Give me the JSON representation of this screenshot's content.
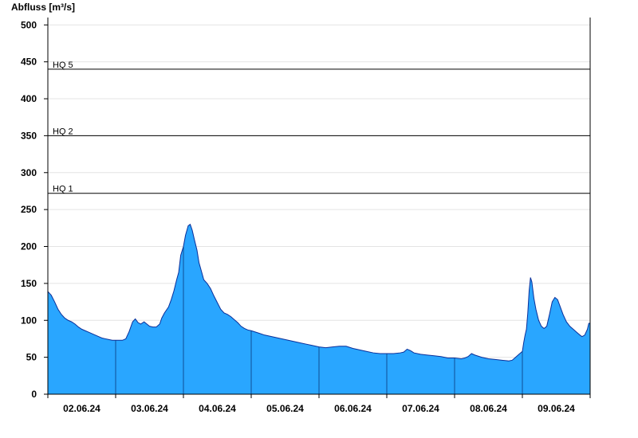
{
  "chart_data": {
    "type": "area",
    "title": "",
    "ylabel": "Abfluss [m³/s]",
    "xlabel": "",
    "ylim": [
      0,
      510
    ],
    "yticks": [
      0,
      50,
      100,
      150,
      200,
      250,
      300,
      350,
      400,
      450,
      500
    ],
    "grid": true,
    "x_range_days": [
      0,
      8
    ],
    "day_boundaries": [
      1,
      2,
      3,
      4,
      5,
      6,
      7
    ],
    "xtick_labels": [
      {
        "day_pos": 0.5,
        "label": "02.06.24"
      },
      {
        "day_pos": 1.5,
        "label": "03.06.24"
      },
      {
        "day_pos": 2.5,
        "label": "04.06.24"
      },
      {
        "day_pos": 3.5,
        "label": "05.06.24"
      },
      {
        "day_pos": 4.5,
        "label": "06.06.24"
      },
      {
        "day_pos": 5.5,
        "label": "07.06.24"
      },
      {
        "day_pos": 6.5,
        "label": "08.06.24"
      },
      {
        "day_pos": 7.5,
        "label": "09.06.24"
      }
    ],
    "reference_lines": [
      {
        "label": "HQ 1",
        "value": 272
      },
      {
        "label": "HQ 2",
        "value": 350
      },
      {
        "label": "HQ 5",
        "value": 440
      }
    ],
    "series": [
      {
        "fill_color": "#29a6ff",
        "line_color": "#0a2f99",
        "points": [
          [
            0.0,
            139
          ],
          [
            0.05,
            134
          ],
          [
            0.1,
            125
          ],
          [
            0.15,
            115
          ],
          [
            0.2,
            108
          ],
          [
            0.25,
            103
          ],
          [
            0.3,
            100
          ],
          [
            0.35,
            98
          ],
          [
            0.4,
            95
          ],
          [
            0.45,
            91
          ],
          [
            0.5,
            88
          ],
          [
            0.55,
            86
          ],
          [
            0.6,
            84
          ],
          [
            0.65,
            82
          ],
          [
            0.7,
            80
          ],
          [
            0.75,
            78
          ],
          [
            0.8,
            76
          ],
          [
            0.85,
            75
          ],
          [
            0.9,
            74
          ],
          [
            0.95,
            73
          ],
          [
            1.0,
            73
          ],
          [
            1.05,
            73
          ],
          [
            1.1,
            73
          ],
          [
            1.15,
            75
          ],
          [
            1.2,
            85
          ],
          [
            1.25,
            98
          ],
          [
            1.29,
            102
          ],
          [
            1.33,
            97
          ],
          [
            1.37,
            95
          ],
          [
            1.42,
            98
          ],
          [
            1.46,
            95
          ],
          [
            1.5,
            92
          ],
          [
            1.55,
            91
          ],
          [
            1.6,
            91
          ],
          [
            1.65,
            95
          ],
          [
            1.68,
            103
          ],
          [
            1.72,
            110
          ],
          [
            1.78,
            118
          ],
          [
            1.82,
            128
          ],
          [
            1.86,
            140
          ],
          [
            1.9,
            155
          ],
          [
            1.93,
            165
          ],
          [
            1.96,
            188
          ],
          [
            2.0,
            200
          ],
          [
            2.03,
            215
          ],
          [
            2.07,
            228
          ],
          [
            2.1,
            230
          ],
          [
            2.13,
            222
          ],
          [
            2.16,
            210
          ],
          [
            2.2,
            195
          ],
          [
            2.23,
            178
          ],
          [
            2.27,
            165
          ],
          [
            2.3,
            155
          ],
          [
            2.35,
            150
          ],
          [
            2.4,
            143
          ],
          [
            2.45,
            133
          ],
          [
            2.5,
            124
          ],
          [
            2.55,
            115
          ],
          [
            2.6,
            110
          ],
          [
            2.65,
            108
          ],
          [
            2.7,
            105
          ],
          [
            2.75,
            101
          ],
          [
            2.8,
            97
          ],
          [
            2.85,
            92
          ],
          [
            2.9,
            89
          ],
          [
            2.95,
            87
          ],
          [
            3.0,
            86
          ],
          [
            3.1,
            83
          ],
          [
            3.2,
            80
          ],
          [
            3.3,
            78
          ],
          [
            3.4,
            76
          ],
          [
            3.5,
            74
          ],
          [
            3.6,
            72
          ],
          [
            3.7,
            70
          ],
          [
            3.8,
            68
          ],
          [
            3.9,
            66
          ],
          [
            4.0,
            64
          ],
          [
            4.1,
            63
          ],
          [
            4.2,
            64
          ],
          [
            4.3,
            65
          ],
          [
            4.4,
            65
          ],
          [
            4.5,
            62
          ],
          [
            4.6,
            60
          ],
          [
            4.7,
            58
          ],
          [
            4.8,
            56
          ],
          [
            4.9,
            55
          ],
          [
            5.0,
            55
          ],
          [
            5.1,
            55
          ],
          [
            5.2,
            56
          ],
          [
            5.25,
            57
          ],
          [
            5.3,
            61
          ],
          [
            5.35,
            59
          ],
          [
            5.4,
            56
          ],
          [
            5.5,
            54
          ],
          [
            5.6,
            53
          ],
          [
            5.7,
            52
          ],
          [
            5.8,
            51
          ],
          [
            5.9,
            49
          ],
          [
            6.0,
            49
          ],
          [
            6.1,
            48
          ],
          [
            6.15,
            49
          ],
          [
            6.2,
            51
          ],
          [
            6.25,
            55
          ],
          [
            6.3,
            53
          ],
          [
            6.4,
            50
          ],
          [
            6.5,
            48
          ],
          [
            6.6,
            47
          ],
          [
            6.7,
            46
          ],
          [
            6.8,
            45
          ],
          [
            6.85,
            46
          ],
          [
            6.9,
            50
          ],
          [
            6.95,
            54
          ],
          [
            7.0,
            58
          ],
          [
            7.02,
            70
          ],
          [
            7.04,
            80
          ],
          [
            7.06,
            88
          ],
          [
            7.08,
            110
          ],
          [
            7.1,
            140
          ],
          [
            7.12,
            158
          ],
          [
            7.14,
            152
          ],
          [
            7.17,
            130
          ],
          [
            7.2,
            115
          ],
          [
            7.24,
            100
          ],
          [
            7.28,
            92
          ],
          [
            7.32,
            89
          ],
          [
            7.36,
            92
          ],
          [
            7.4,
            108
          ],
          [
            7.44,
            125
          ],
          [
            7.48,
            131
          ],
          [
            7.52,
            128
          ],
          [
            7.56,
            118
          ],
          [
            7.6,
            108
          ],
          [
            7.65,
            98
          ],
          [
            7.7,
            92
          ],
          [
            7.75,
            88
          ],
          [
            7.8,
            84
          ],
          [
            7.85,
            80
          ],
          [
            7.88,
            78
          ],
          [
            7.92,
            80
          ],
          [
            7.96,
            88
          ],
          [
            7.98,
            96
          ],
          [
            8.0,
            96
          ]
        ]
      }
    ]
  }
}
